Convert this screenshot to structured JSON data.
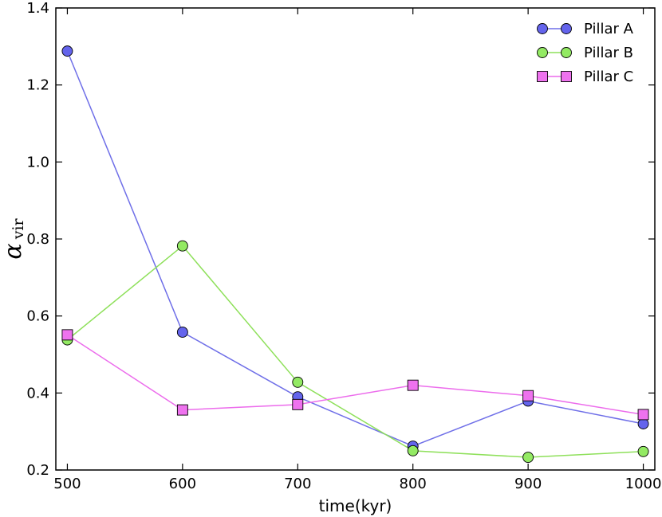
{
  "chart_data": {
    "type": "line",
    "title": "",
    "xlabel": "time(kyr)",
    "ylabel": {
      "symbol": "α",
      "subscript": "vir"
    },
    "x": [
      500,
      600,
      700,
      800,
      900,
      1000
    ],
    "xlim": [
      490,
      1010
    ],
    "ylim": [
      0.2,
      1.4
    ],
    "xticks": [
      500,
      600,
      700,
      800,
      900,
      1000
    ],
    "yticks": [
      0.2,
      0.4,
      0.6,
      0.8,
      1.0,
      1.2,
      1.4
    ],
    "ytick_labels": [
      "0.2",
      "0.4",
      "0.6",
      "0.8",
      "1.0",
      "1.2",
      "1.4"
    ],
    "grid": false,
    "legend_position": "top-right",
    "series": [
      {
        "name": "Pillar A",
        "marker": "circle",
        "line_color": "#6f6fe8",
        "marker_fill": "#6464ec",
        "values": [
          1.288,
          0.558,
          0.39,
          0.262,
          0.379,
          0.32
        ]
      },
      {
        "name": "Pillar B",
        "marker": "circle",
        "line_color": "#8ee05a",
        "marker_fill": "#93ea63",
        "values": [
          0.538,
          0.782,
          0.428,
          0.25,
          0.233,
          0.248
        ]
      },
      {
        "name": "Pillar C",
        "marker": "square",
        "line_color": "#ec6cec",
        "marker_fill": "#ee72ee",
        "values": [
          0.551,
          0.356,
          0.37,
          0.42,
          0.393,
          0.344
        ]
      }
    ]
  }
}
